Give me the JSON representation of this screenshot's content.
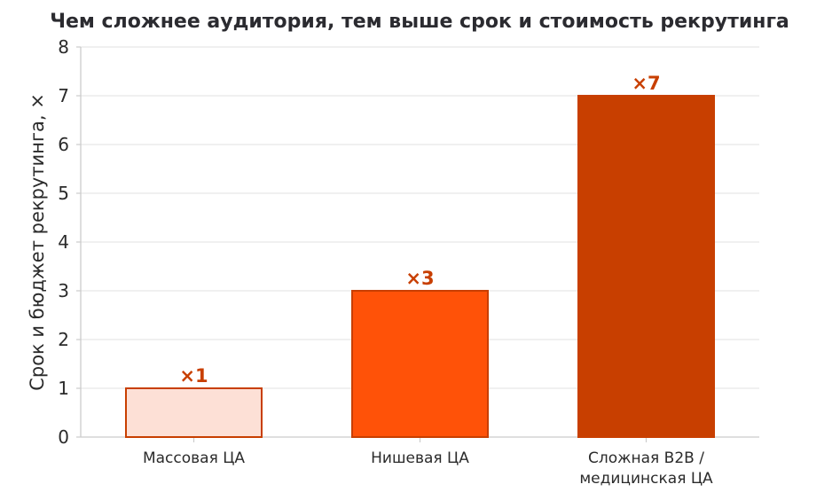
{
  "chart_data": {
    "type": "bar",
    "title": "Чем сложнее аудитория, тем выше срок и стоимость рекрутинга",
    "xlabel": "",
    "ylabel": "Срок и бюджет рекрутинга, ×",
    "ylim": [
      0,
      8
    ],
    "yticks": [
      "0",
      "1",
      "2",
      "3",
      "4",
      "5",
      "6",
      "7",
      "8"
    ],
    "grid": true,
    "categories": [
      [
        "Массовая ЦА"
      ],
      [
        "Нишевая ЦА"
      ],
      [
        "Сложная B2B /",
        "медицинская ЦА"
      ]
    ],
    "values": [
      1,
      3,
      7
    ],
    "data_labels": [
      "×1",
      "×3",
      "×7"
    ],
    "colors": {
      "bar_fills": [
        "#fde0d6",
        "#ff5208",
        "#c83f00"
      ],
      "bar_edge": "#c83f00",
      "label_color": "#c83f00",
      "grid": "#e6e6e6",
      "axis": "#cccccc"
    }
  }
}
